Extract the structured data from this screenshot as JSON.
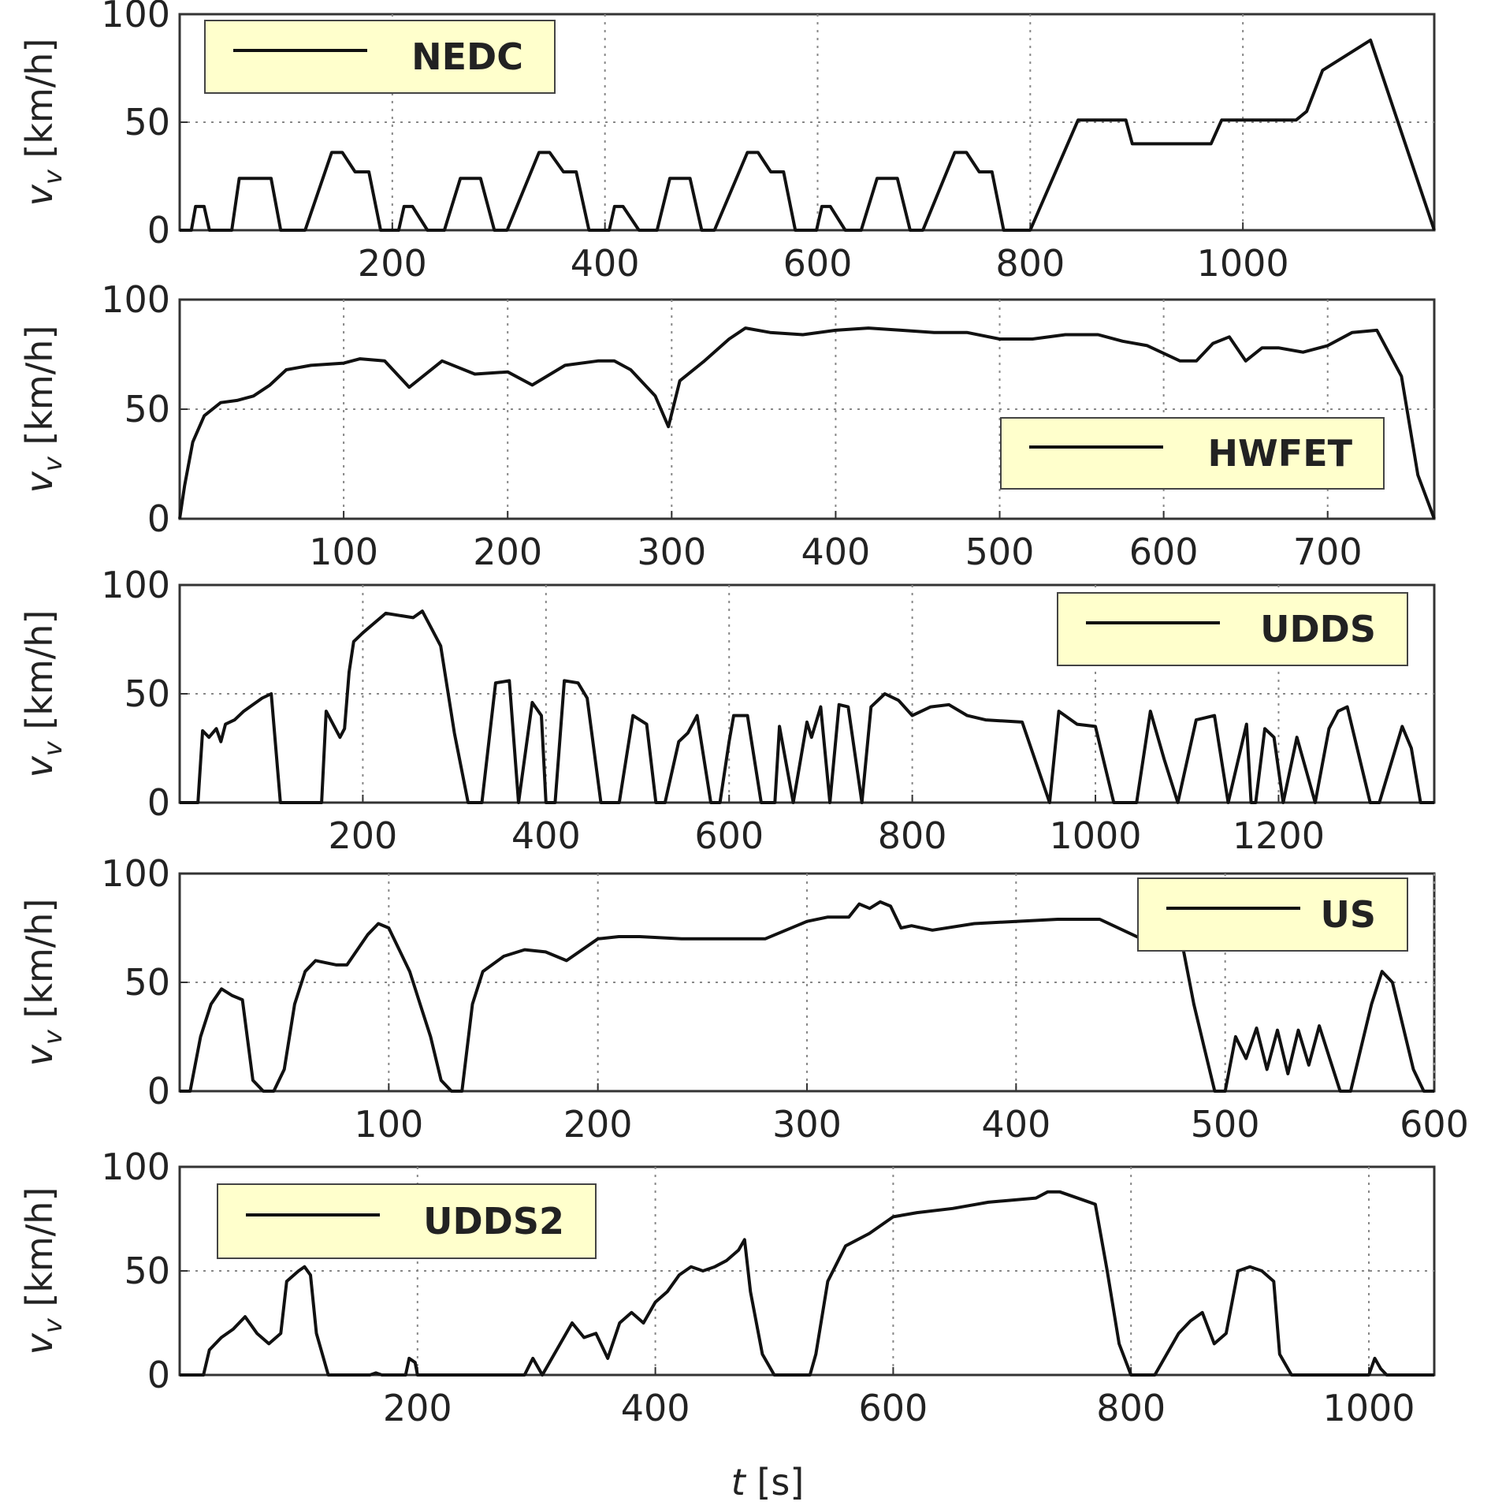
{
  "chart_data": [
    {
      "type": "line",
      "legend": "NEDC",
      "legend_position": "top-left",
      "ylabel": "v_v [km/h]",
      "ylim": [
        0,
        100
      ],
      "xlim": [
        0,
        1180
      ],
      "yticks": [
        0,
        50,
        100
      ],
      "xticks": [
        200,
        400,
        600,
        800,
        1000
      ],
      "x": [
        0,
        11,
        15,
        23,
        28,
        38,
        49,
        56,
        61,
        76,
        86,
        95,
        105,
        118,
        143,
        153,
        165,
        178,
        189,
        199,
        206,
        211,
        219,
        233,
        243,
        249,
        264,
        274,
        283,
        296,
        308,
        338,
        348,
        361,
        373,
        385,
        396,
        404,
        409,
        417,
        432,
        441,
        449,
        461,
        470,
        480,
        491,
        503,
        534,
        544,
        556,
        568,
        579,
        591,
        599,
        604,
        612,
        626,
        635,
        641,
        656,
        666,
        675,
        687,
        699,
        729,
        740,
        752,
        764,
        775,
        786,
        794,
        800,
        845,
        890,
        896,
        970,
        980,
        1050,
        1060,
        1075,
        1120,
        1180
      ],
      "values": [
        0,
        0,
        11,
        11,
        0,
        0,
        0,
        24,
        24,
        24,
        24,
        0,
        0,
        0,
        36,
        36,
        27,
        27,
        0,
        0,
        0,
        11,
        11,
        0,
        0,
        0,
        24,
        24,
        24,
        0,
        0,
        36,
        36,
        27,
        27,
        0,
        0,
        0,
        11,
        11,
        0,
        0,
        0,
        24,
        24,
        24,
        0,
        0,
        36,
        36,
        27,
        27,
        0,
        0,
        0,
        11,
        11,
        0,
        0,
        0,
        24,
        24,
        24,
        0,
        0,
        36,
        36,
        27,
        27,
        0,
        0,
        0,
        0,
        51,
        51,
        40,
        40,
        51,
        51,
        55,
        74,
        88,
        0
      ]
    },
    {
      "type": "line",
      "legend": "HWFET",
      "legend_position": "center-right",
      "ylabel": "v_v [km/h]",
      "ylim": [
        0,
        100
      ],
      "xlim": [
        0,
        765
      ],
      "yticks": [
        0,
        50,
        100
      ],
      "xticks": [
        100,
        200,
        300,
        400,
        500,
        600,
        700
      ],
      "x": [
        0,
        3,
        8,
        15,
        25,
        35,
        45,
        55,
        65,
        80,
        100,
        110,
        125,
        140,
        160,
        180,
        200,
        215,
        235,
        255,
        265,
        275,
        290,
        298,
        305,
        320,
        335,
        345,
        360,
        380,
        400,
        420,
        440,
        460,
        480,
        500,
        520,
        540,
        560,
        575,
        590,
        610,
        620,
        630,
        640,
        650,
        660,
        670,
        685,
        700,
        715,
        730,
        745,
        755,
        765
      ],
      "values": [
        0,
        15,
        35,
        47,
        53,
        54,
        56,
        61,
        68,
        70,
        71,
        73,
        72,
        60,
        72,
        66,
        67,
        61,
        70,
        72,
        72,
        68,
        56,
        42,
        63,
        72,
        82,
        87,
        85,
        84,
        86,
        87,
        86,
        85,
        85,
        82,
        82,
        84,
        84,
        81,
        79,
        72,
        72,
        80,
        83,
        72,
        78,
        78,
        76,
        79,
        85,
        86,
        65,
        20,
        0
      ]
    },
    {
      "type": "line",
      "legend": "UDDS",
      "legend_position": "top-right",
      "ylabel": "v_v [km/h]",
      "ylim": [
        0,
        100
      ],
      "xlim": [
        0,
        1370
      ],
      "yticks": [
        0,
        50,
        100
      ],
      "xticks": [
        200,
        400,
        600,
        800,
        1000,
        1200
      ],
      "x": [
        0,
        20,
        25,
        32,
        40,
        45,
        50,
        60,
        70,
        80,
        90,
        100,
        110,
        125,
        155,
        160,
        175,
        180,
        185,
        190,
        200,
        225,
        255,
        265,
        275,
        285,
        300,
        315,
        330,
        345,
        360,
        370,
        385,
        395,
        400,
        410,
        420,
        435,
        445,
        460,
        480,
        495,
        510,
        520,
        530,
        545,
        555,
        565,
        580,
        590,
        600,
        605,
        620,
        635,
        650,
        655,
        670,
        685,
        690,
        700,
        710,
        720,
        730,
        745,
        755,
        770,
        785,
        800,
        820,
        840,
        860,
        880,
        920,
        950,
        960,
        980,
        1000,
        1020,
        1045,
        1060,
        1075,
        1090,
        1110,
        1130,
        1145,
        1165,
        1170,
        1175,
        1185,
        1195,
        1205,
        1220,
        1240,
        1255,
        1265,
        1275,
        1300,
        1310,
        1335,
        1345,
        1355,
        1370
      ],
      "values": [
        0,
        0,
        33,
        30,
        34,
        28,
        36,
        38,
        42,
        45,
        48,
        50,
        0,
        0,
        0,
        42,
        30,
        34,
        60,
        74,
        78,
        87,
        85,
        88,
        80,
        72,
        32,
        0,
        0,
        55,
        56,
        0,
        46,
        40,
        0,
        0,
        56,
        55,
        48,
        0,
        0,
        40,
        36,
        0,
        0,
        28,
        32,
        40,
        0,
        0,
        28,
        40,
        40,
        0,
        0,
        35,
        0,
        37,
        30,
        44,
        0,
        45,
        44,
        0,
        44,
        50,
        47,
        40,
        44,
        45,
        40,
        38,
        37,
        0,
        42,
        36,
        35,
        0,
        0,
        42,
        20,
        0,
        38,
        40,
        0,
        36,
        0,
        0,
        34,
        30,
        0,
        30,
        0,
        34,
        42,
        44,
        0,
        0,
        35,
        25,
        0,
        0
      ]
    },
    {
      "type": "line",
      "legend": "US",
      "legend_position": "top-right",
      "ylabel": "v_v [km/h]",
      "ylim": [
        0,
        100
      ],
      "xlim": [
        0,
        600
      ],
      "yticks": [
        0,
        50,
        100
      ],
      "xticks": [
        100,
        200,
        300,
        400,
        500,
        600
      ],
      "x": [
        0,
        5,
        10,
        15,
        20,
        25,
        30,
        35,
        40,
        45,
        50,
        55,
        60,
        65,
        70,
        75,
        80,
        85,
        90,
        95,
        100,
        105,
        110,
        115,
        120,
        125,
        130,
        135,
        140,
        145,
        155,
        165,
        175,
        185,
        200,
        210,
        220,
        240,
        260,
        280,
        300,
        310,
        320,
        325,
        330,
        335,
        340,
        345,
        350,
        360,
        380,
        400,
        420,
        440,
        460,
        470,
        475,
        480,
        485,
        490,
        495,
        500,
        505,
        510,
        515,
        520,
        525,
        530,
        535,
        540,
        545,
        550,
        555,
        560,
        565,
        570,
        575,
        580,
        585,
        590,
        595,
        600
      ],
      "values": [
        0,
        0,
        25,
        40,
        47,
        44,
        42,
        5,
        0,
        0,
        10,
        40,
        55,
        60,
        59,
        58,
        58,
        65,
        72,
        77,
        75,
        65,
        55,
        40,
        25,
        5,
        0,
        0,
        40,
        55,
        62,
        65,
        64,
        60,
        70,
        71,
        71,
        70,
        70,
        70,
        78,
        80,
        80,
        86,
        84,
        87,
        85,
        75,
        76,
        74,
        77,
        78,
        79,
        79,
        70,
        68,
        68,
        65,
        40,
        20,
        0,
        0,
        25,
        15,
        29,
        10,
        28,
        8,
        28,
        12,
        30,
        15,
        0,
        0,
        20,
        40,
        55,
        50,
        30,
        10,
        0,
        0
      ]
    },
    {
      "type": "line",
      "legend": "UDDS2",
      "legend_position": "top-left",
      "ylabel": "v_v [km/h]",
      "xlabel": "t [s]",
      "ylim": [
        0,
        100
      ],
      "xlim": [
        0,
        1055
      ],
      "yticks": [
        0,
        50,
        100
      ],
      "xticks": [
        200,
        400,
        600,
        800,
        1000
      ],
      "x": [
        0,
        20,
        25,
        35,
        45,
        55,
        65,
        75,
        85,
        90,
        100,
        105,
        110,
        115,
        125,
        130,
        140,
        160,
        165,
        170,
        190,
        193,
        198,
        200,
        230,
        290,
        297,
        305,
        320,
        330,
        340,
        350,
        360,
        370,
        380,
        390,
        400,
        410,
        420,
        430,
        440,
        450,
        460,
        470,
        475,
        480,
        490,
        500,
        530,
        535,
        545,
        560,
        580,
        600,
        620,
        650,
        680,
        720,
        730,
        740,
        760,
        770,
        780,
        790,
        800,
        820,
        830,
        840,
        850,
        860,
        870,
        880,
        890,
        900,
        910,
        920,
        925,
        935,
        1000,
        1005,
        1010,
        1015,
        1055
      ],
      "values": [
        0,
        0,
        12,
        18,
        22,
        28,
        20,
        15,
        20,
        45,
        50,
        52,
        48,
        20,
        0,
        0,
        0,
        0,
        1,
        0,
        0,
        8,
        6,
        0,
        0,
        0,
        8,
        0,
        15,
        25,
        18,
        20,
        8,
        25,
        30,
        25,
        35,
        40,
        48,
        52,
        50,
        52,
        55,
        60,
        65,
        40,
        10,
        0,
        0,
        10,
        45,
        62,
        68,
        76,
        78,
        80,
        83,
        85,
        88,
        88,
        84,
        82,
        50,
        15,
        0,
        0,
        10,
        20,
        26,
        30,
        15,
        20,
        50,
        52,
        50,
        45,
        10,
        0,
        0,
        8,
        3,
        0,
        0
      ]
    }
  ],
  "xlabel": "t [s]"
}
